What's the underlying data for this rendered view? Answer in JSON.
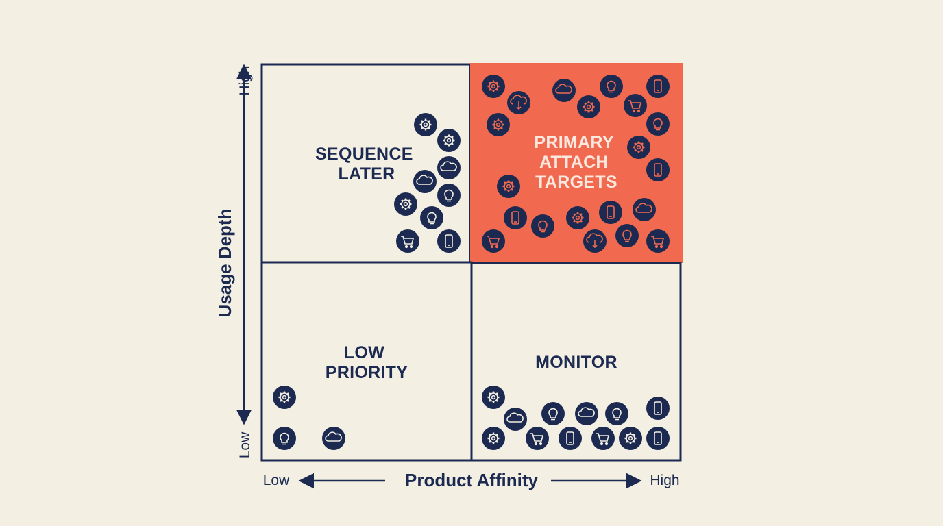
{
  "colors": {
    "background": "#f3efe3",
    "navy": "#1c2a52",
    "highlight": "#f1694f",
    "highlight_text": "#fbe9df"
  },
  "x_axis": {
    "title": "Product Affinity",
    "low": "Low",
    "high": "High"
  },
  "y_axis": {
    "title": "Usage Depth",
    "low": "Low",
    "high": "High"
  },
  "quadrants": {
    "top_left": {
      "lines": [
        "SEQUENCE",
        "LATER"
      ],
      "highlighted": false
    },
    "top_right": {
      "lines": [
        "PRIMARY",
        "ATTACH",
        "TARGETS"
      ],
      "highlighted": true
    },
    "bottom_left": {
      "lines": [
        "LOW",
        "PRIORITY"
      ],
      "highlighted": false
    },
    "bottom_right": {
      "lines": [
        "MONITOR"
      ],
      "highlighted": false
    }
  },
  "icon_counts": {
    "top_left": 10,
    "top_right": 24,
    "bottom_left": 3,
    "bottom_right": 14
  },
  "icon_types": [
    "gear-icon",
    "cloud-icon",
    "lightbulb-icon",
    "phone-icon",
    "cart-icon",
    "cloud-download-icon"
  ]
}
